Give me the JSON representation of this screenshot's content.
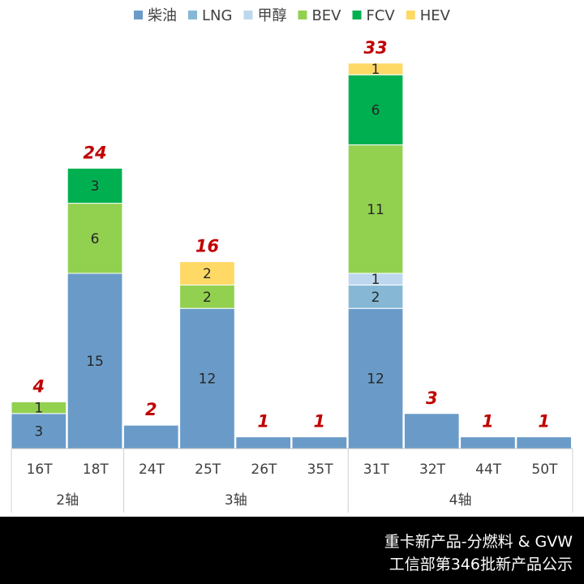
{
  "chart_data": {
    "type": "bar",
    "stacked": true,
    "categories": [
      "16T",
      "18T",
      "24T",
      "25T",
      "26T",
      "35T",
      "31T",
      "32T",
      "44T",
      "50T"
    ],
    "groups": [
      {
        "label": "2轴",
        "categories": [
          "16T",
          "18T"
        ]
      },
      {
        "label": "3轴",
        "categories": [
          "24T",
          "25T",
          "26T",
          "35T"
        ]
      },
      {
        "label": "4轴",
        "categories": [
          "31T",
          "32T",
          "44T",
          "50T"
        ]
      }
    ],
    "series": [
      {
        "name": "柴油",
        "color": "#6a9bc8",
        "values": [
          3,
          15,
          2,
          12,
          1,
          1,
          12,
          3,
          1,
          1
        ]
      },
      {
        "name": "LNG",
        "color": "#86b8d6",
        "values": [
          0,
          0,
          0,
          0,
          0,
          0,
          2,
          0,
          0,
          0
        ]
      },
      {
        "name": "甲醇",
        "color": "#bdd7ee",
        "values": [
          0,
          0,
          0,
          0,
          0,
          0,
          1,
          0,
          0,
          0
        ]
      },
      {
        "name": "BEV",
        "color": "#92d050",
        "values": [
          1,
          6,
          0,
          2,
          0,
          0,
          11,
          0,
          0,
          0
        ]
      },
      {
        "name": "FCV",
        "color": "#00b050",
        "values": [
          0,
          3,
          0,
          0,
          0,
          0,
          6,
          0,
          0,
          0
        ]
      },
      {
        "name": "HEV",
        "color": "#ffd966",
        "values": [
          0,
          0,
          0,
          2,
          0,
          0,
          1,
          0,
          0,
          0
        ]
      }
    ],
    "segment_labels": [
      [
        "3",
        "15",
        "",
        "12",
        "",
        "",
        "12",
        "",
        "",
        ""
      ],
      [
        "",
        "",
        "",
        "",
        "",
        "",
        "2",
        "",
        "",
        ""
      ],
      [
        "",
        "",
        "",
        "",
        "",
        "",
        "1",
        "",
        "",
        ""
      ],
      [
        "1",
        "6",
        "",
        "2",
        "",
        "",
        "11",
        "",
        "",
        ""
      ],
      [
        "",
        "3",
        "",
        "",
        "",
        "",
        "6",
        "",
        "",
        ""
      ],
      [
        "",
        "",
        "",
        "2",
        "",
        "",
        "1",
        "",
        "",
        ""
      ]
    ],
    "totals": [
      "4",
      "24",
      "2",
      "16",
      "1",
      "1",
      "33",
      "3",
      "1",
      "1"
    ],
    "total_label_color": "#c00000",
    "ylim": [
      0,
      35
    ],
    "legend_position": "top",
    "grid": false
  },
  "footer": {
    "line1": "重卡新产品-分燃料 & GVW",
    "line2": "工信部第346批新产品公示"
  }
}
